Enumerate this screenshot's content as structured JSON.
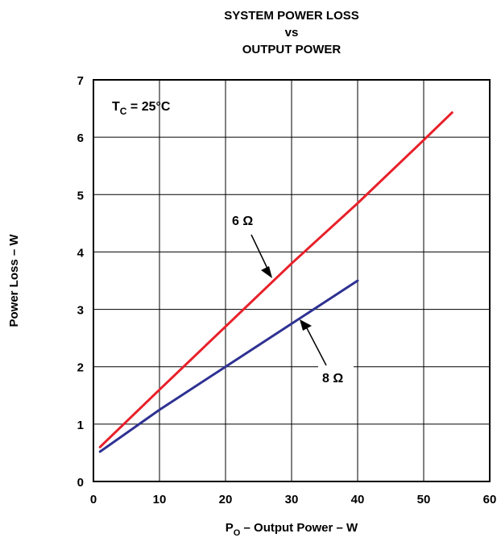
{
  "chart_data": {
    "type": "line",
    "title_lines": [
      "SYSTEM POWER LOSS",
      "vs",
      "OUTPUT POWER"
    ],
    "xlabel": {
      "prefix": "P",
      "sub": "O",
      "suffix": " – Output Power – W"
    },
    "ylabel": "Power Loss – W",
    "xlim": [
      0,
      60
    ],
    "ylim": [
      0,
      7
    ],
    "xticks": [
      0,
      10,
      20,
      30,
      40,
      50,
      60
    ],
    "yticks": [
      0,
      1,
      2,
      3,
      4,
      5,
      6,
      7
    ],
    "grid": true,
    "annotation": {
      "prefix": "T",
      "sub": "C",
      "suffix": " = 25°C"
    },
    "series": [
      {
        "name": "6 Ω",
        "color": "#e8202a",
        "points": [
          [
            1,
            0.6
          ],
          [
            10,
            1.6
          ],
          [
            20,
            2.7
          ],
          [
            30,
            3.8
          ],
          [
            40,
            4.85
          ],
          [
            50,
            5.95
          ],
          [
            54.3,
            6.43
          ]
        ]
      },
      {
        "name": "8 Ω",
        "color": "#2e3192",
        "points": [
          [
            1,
            0.52
          ],
          [
            10,
            1.25
          ],
          [
            20,
            2.0
          ],
          [
            30,
            2.75
          ],
          [
            40,
            3.5
          ]
        ]
      }
    ],
    "series_labels": [
      {
        "series": 0,
        "text": "6 Ω",
        "position": "upper-left"
      },
      {
        "series": 1,
        "text": "8 Ω",
        "position": "lower-right"
      }
    ]
  }
}
